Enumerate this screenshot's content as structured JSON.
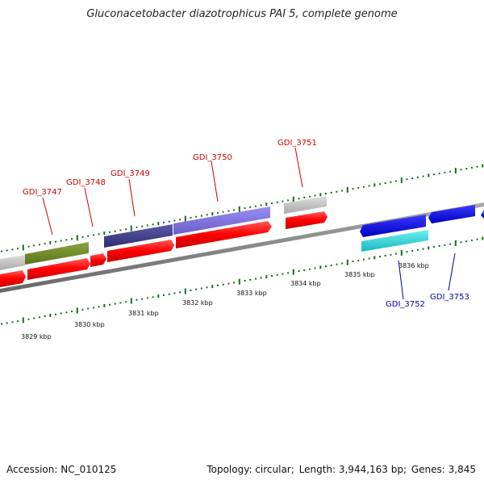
{
  "title": "Gluconacetobacter diazotrophicus PAI 5, complete genome",
  "footer": {
    "accession": "Accession: NC_010125",
    "topology": "Topology: circular",
    "length": "Length: 3,944,163 bp",
    "genes": "Genes: 3,845"
  },
  "colors": {
    "forward_gene": "#ff0000",
    "backbone": "#808080",
    "tick": "#1a6b1a",
    "label_forward": "#cc0000",
    "label_reverse": "#0000aa"
  },
  "scale_unit": "kbp",
  "scale_labels": [
    {
      "kbp": 3829,
      "text": "3829 kbp"
    },
    {
      "kbp": 3830,
      "text": "3830 kbp"
    },
    {
      "kbp": 3831,
      "text": "3831 kbp"
    },
    {
      "kbp": 3832,
      "text": "3832 kbp"
    },
    {
      "kbp": 3833,
      "text": "3833 kbp"
    },
    {
      "kbp": 3834,
      "text": "3834 kbp"
    },
    {
      "kbp": 3835,
      "text": "3835 kbp"
    },
    {
      "kbp": 3836,
      "text": "3836 kbp"
    }
  ],
  "gene_labels": [
    {
      "id": "GDI_3747",
      "text": "GDI_3747",
      "strand": "forward"
    },
    {
      "id": "GDI_3748",
      "text": "GDI_3748",
      "strand": "forward"
    },
    {
      "id": "GDI_3749",
      "text": "GDI_3749",
      "strand": "forward"
    },
    {
      "id": "GDI_3750",
      "text": "GDI_3750",
      "strand": "forward"
    },
    {
      "id": "GDI_3751",
      "text": "GDI_3751",
      "strand": "forward"
    },
    {
      "id": "GDI_3752",
      "text": "GDI_3752",
      "strand": "reverse"
    },
    {
      "id": "GDI_3753",
      "text": "GDI_3753",
      "strand": "reverse"
    }
  ]
}
